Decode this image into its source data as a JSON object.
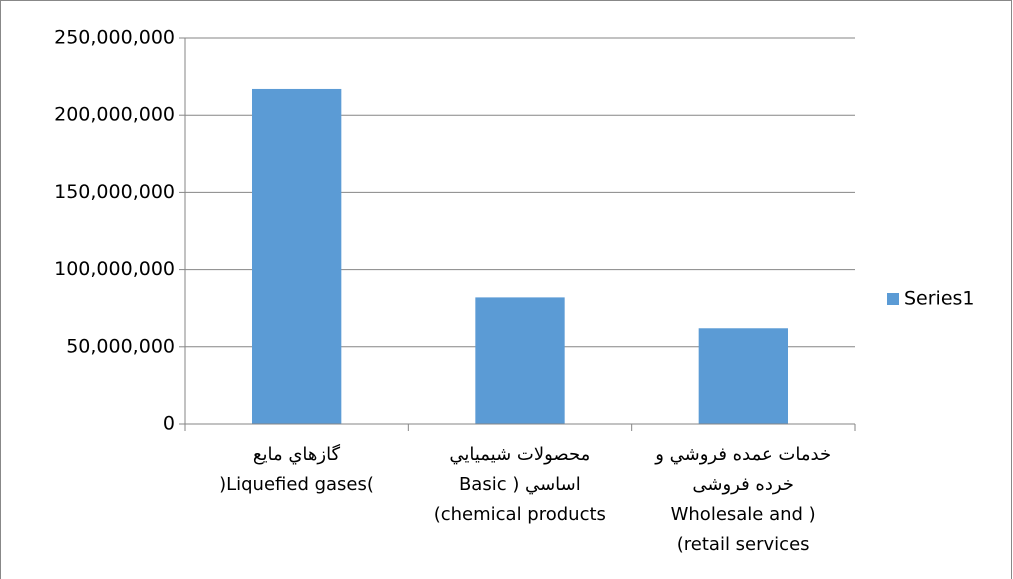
{
  "chart_data": {
    "type": "bar",
    "categories": [
      "گازهاي مايع\n(Liquefied gases)",
      "محصولات شيميايي\nاساسي ( Basic\n(chemical products",
      "خدمات عمده فروشي و\nخرده فروشی\nWholesale and )\n(retail services"
    ],
    "series": [
      {
        "name": "Series1",
        "color": "#5b9bd5",
        "values": [
          217000000,
          82000000,
          62000000
        ]
      }
    ],
    "ylim": [
      0,
      250000000
    ],
    "yticks": [
      0,
      {
        "value": 50000000,
        "label": "50,000,000"
      },
      {
        "value": 100000000,
        "label": "100,000,000"
      },
      {
        "value": 150000000,
        "label": "150,000,000"
      },
      {
        "value": 200000000,
        "label": "200,000,000"
      },
      {
        "value": 250000000,
        "label": "250,000,000"
      }
    ],
    "grid": true,
    "legend": "right"
  }
}
